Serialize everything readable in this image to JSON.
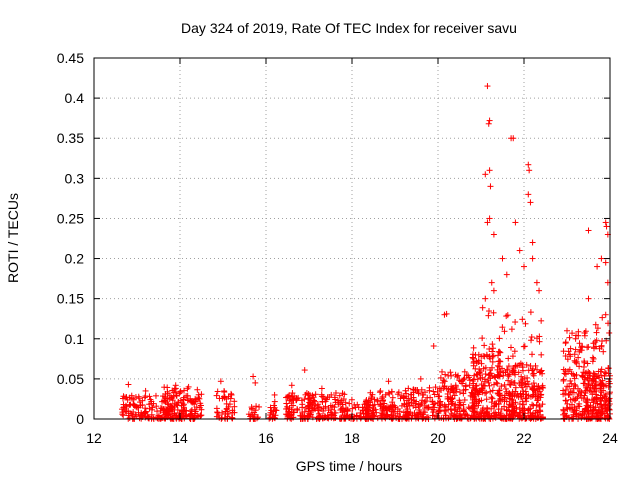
{
  "chart_data": {
    "type": "scatter",
    "title": "Day 324 of 2019, Rate Of TEC Index for receiver savu",
    "xlabel": "GPS time / hours",
    "ylabel": "ROTI / TECUs",
    "xlim": [
      12,
      24
    ],
    "ylim": [
      0,
      0.45
    ],
    "grid": true,
    "marker": "plus",
    "marker_color": "#ff0000",
    "x_ticks": [
      {
        "value": 12,
        "label": "12"
      },
      {
        "value": 14,
        "label": "14"
      },
      {
        "value": 16,
        "label": "16"
      },
      {
        "value": 18,
        "label": "18"
      },
      {
        "value": 20,
        "label": "20"
      },
      {
        "value": 22,
        "label": "22"
      },
      {
        "value": 24,
        "label": "24"
      }
    ],
    "y_ticks": [
      {
        "value": 0,
        "label": "0"
      },
      {
        "value": 0.05,
        "label": "0.05"
      },
      {
        "value": 0.1,
        "label": "0.1"
      },
      {
        "value": 0.15,
        "label": "0.15"
      },
      {
        "value": 0.2,
        "label": "0.2"
      },
      {
        "value": 0.25,
        "label": "0.25"
      },
      {
        "value": 0.3,
        "label": "0.3"
      },
      {
        "value": 0.35,
        "label": "0.35"
      },
      {
        "value": 0.4,
        "label": "0.4"
      },
      {
        "value": 0.45,
        "label": "0.45"
      }
    ],
    "notable_points": [
      {
        "x": 12.8,
        "y": 0.043
      },
      {
        "x": 13.2,
        "y": 0.035
      },
      {
        "x": 13.9,
        "y": 0.042
      },
      {
        "x": 14.2,
        "y": 0.04
      },
      {
        "x": 14.95,
        "y": 0.047
      },
      {
        "x": 15.2,
        "y": 0.03
      },
      {
        "x": 15.7,
        "y": 0.053
      },
      {
        "x": 15.75,
        "y": 0.045
      },
      {
        "x": 16.2,
        "y": 0.03
      },
      {
        "x": 16.9,
        "y": 0.061
      },
      {
        "x": 16.6,
        "y": 0.042
      },
      {
        "x": 17.3,
        "y": 0.038
      },
      {
        "x": 18.85,
        "y": 0.047
      },
      {
        "x": 19.6,
        "y": 0.05
      },
      {
        "x": 19.9,
        "y": 0.091
      },
      {
        "x": 20.2,
        "y": 0.131
      },
      {
        "x": 20.15,
        "y": 0.13
      },
      {
        "x": 21.15,
        "y": 0.415
      },
      {
        "x": 21.2,
        "y": 0.372
      },
      {
        "x": 21.18,
        "y": 0.368
      },
      {
        "x": 21.1,
        "y": 0.305
      },
      {
        "x": 21.2,
        "y": 0.31
      },
      {
        "x": 21.22,
        "y": 0.29
      },
      {
        "x": 21.3,
        "y": 0.23
      },
      {
        "x": 21.15,
        "y": 0.245
      },
      {
        "x": 21.2,
        "y": 0.25
      },
      {
        "x": 21.1,
        "y": 0.15
      },
      {
        "x": 21.25,
        "y": 0.17
      },
      {
        "x": 21.3,
        "y": 0.16
      },
      {
        "x": 21.5,
        "y": 0.2
      },
      {
        "x": 21.6,
        "y": 0.18
      },
      {
        "x": 21.7,
        "y": 0.35
      },
      {
        "x": 21.75,
        "y": 0.35
      },
      {
        "x": 21.8,
        "y": 0.245
      },
      {
        "x": 21.9,
        "y": 0.21
      },
      {
        "x": 22.0,
        "y": 0.19
      },
      {
        "x": 22.1,
        "y": 0.317
      },
      {
        "x": 22.12,
        "y": 0.31
      },
      {
        "x": 22.1,
        "y": 0.28
      },
      {
        "x": 22.15,
        "y": 0.27
      },
      {
        "x": 22.2,
        "y": 0.22
      },
      {
        "x": 22.2,
        "y": 0.2
      },
      {
        "x": 22.3,
        "y": 0.17
      },
      {
        "x": 22.35,
        "y": 0.16
      },
      {
        "x": 22.4,
        "y": 0.08
      },
      {
        "x": 23.0,
        "y": 0.11
      },
      {
        "x": 23.2,
        "y": 0.1
      },
      {
        "x": 23.5,
        "y": 0.235
      },
      {
        "x": 23.5,
        "y": 0.15
      },
      {
        "x": 23.7,
        "y": 0.19
      },
      {
        "x": 23.8,
        "y": 0.2
      },
      {
        "x": 23.9,
        "y": 0.245
      },
      {
        "x": 23.92,
        "y": 0.24
      },
      {
        "x": 23.95,
        "y": 0.23
      },
      {
        "x": 23.9,
        "y": 0.195
      },
      {
        "x": 23.95,
        "y": 0.17
      },
      {
        "x": 23.9,
        "y": 0.13
      },
      {
        "x": 23.8,
        "y": 0.09
      }
    ],
    "dense_clusters": [
      {
        "x_range": [
          12.65,
          13.8
        ],
        "y_max": 0.03,
        "count": 130,
        "seed": 11
      },
      {
        "x_range": [
          13.6,
          14.5
        ],
        "y_max": 0.04,
        "count": 150,
        "seed": 12
      },
      {
        "x_range": [
          14.85,
          15.3
        ],
        "y_max": 0.035,
        "count": 45,
        "seed": 13
      },
      {
        "x_range": [
          15.6,
          15.85
        ],
        "y_max": 0.02,
        "count": 20,
        "seed": 14
      },
      {
        "x_range": [
          16.05,
          16.25
        ],
        "y_max": 0.025,
        "count": 18,
        "seed": 15
      },
      {
        "x_range": [
          16.45,
          17.9
        ],
        "y_max": 0.033,
        "count": 200,
        "seed": 16
      },
      {
        "x_range": [
          17.9,
          18.4
        ],
        "y_max": 0.025,
        "count": 50,
        "seed": 17
      },
      {
        "x_range": [
          18.3,
          19.3
        ],
        "y_max": 0.035,
        "count": 130,
        "seed": 18
      },
      {
        "x_range": [
          19.2,
          20.0
        ],
        "y_max": 0.04,
        "count": 110,
        "seed": 19
      },
      {
        "x_range": [
          20.0,
          20.9
        ],
        "y_max": 0.06,
        "count": 160,
        "seed": 20
      },
      {
        "x_range": [
          20.8,
          21.45
        ],
        "y_max": 0.09,
        "count": 170,
        "seed": 21
      },
      {
        "x_range": [
          21.4,
          22.45
        ],
        "y_max": 0.07,
        "count": 240,
        "seed": 22
      },
      {
        "x_range": [
          21.0,
          22.4
        ],
        "y_max": 0.14,
        "count": 70,
        "seed": 23
      },
      {
        "x_range": [
          22.9,
          23.5
        ],
        "y_max": 0.11,
        "count": 150,
        "seed": 24
      },
      {
        "x_range": [
          23.4,
          24.0
        ],
        "y_max": 0.06,
        "count": 140,
        "seed": 25
      },
      {
        "x_range": [
          23.6,
          24.0
        ],
        "y_max": 0.13,
        "count": 60,
        "seed": 26
      }
    ]
  }
}
